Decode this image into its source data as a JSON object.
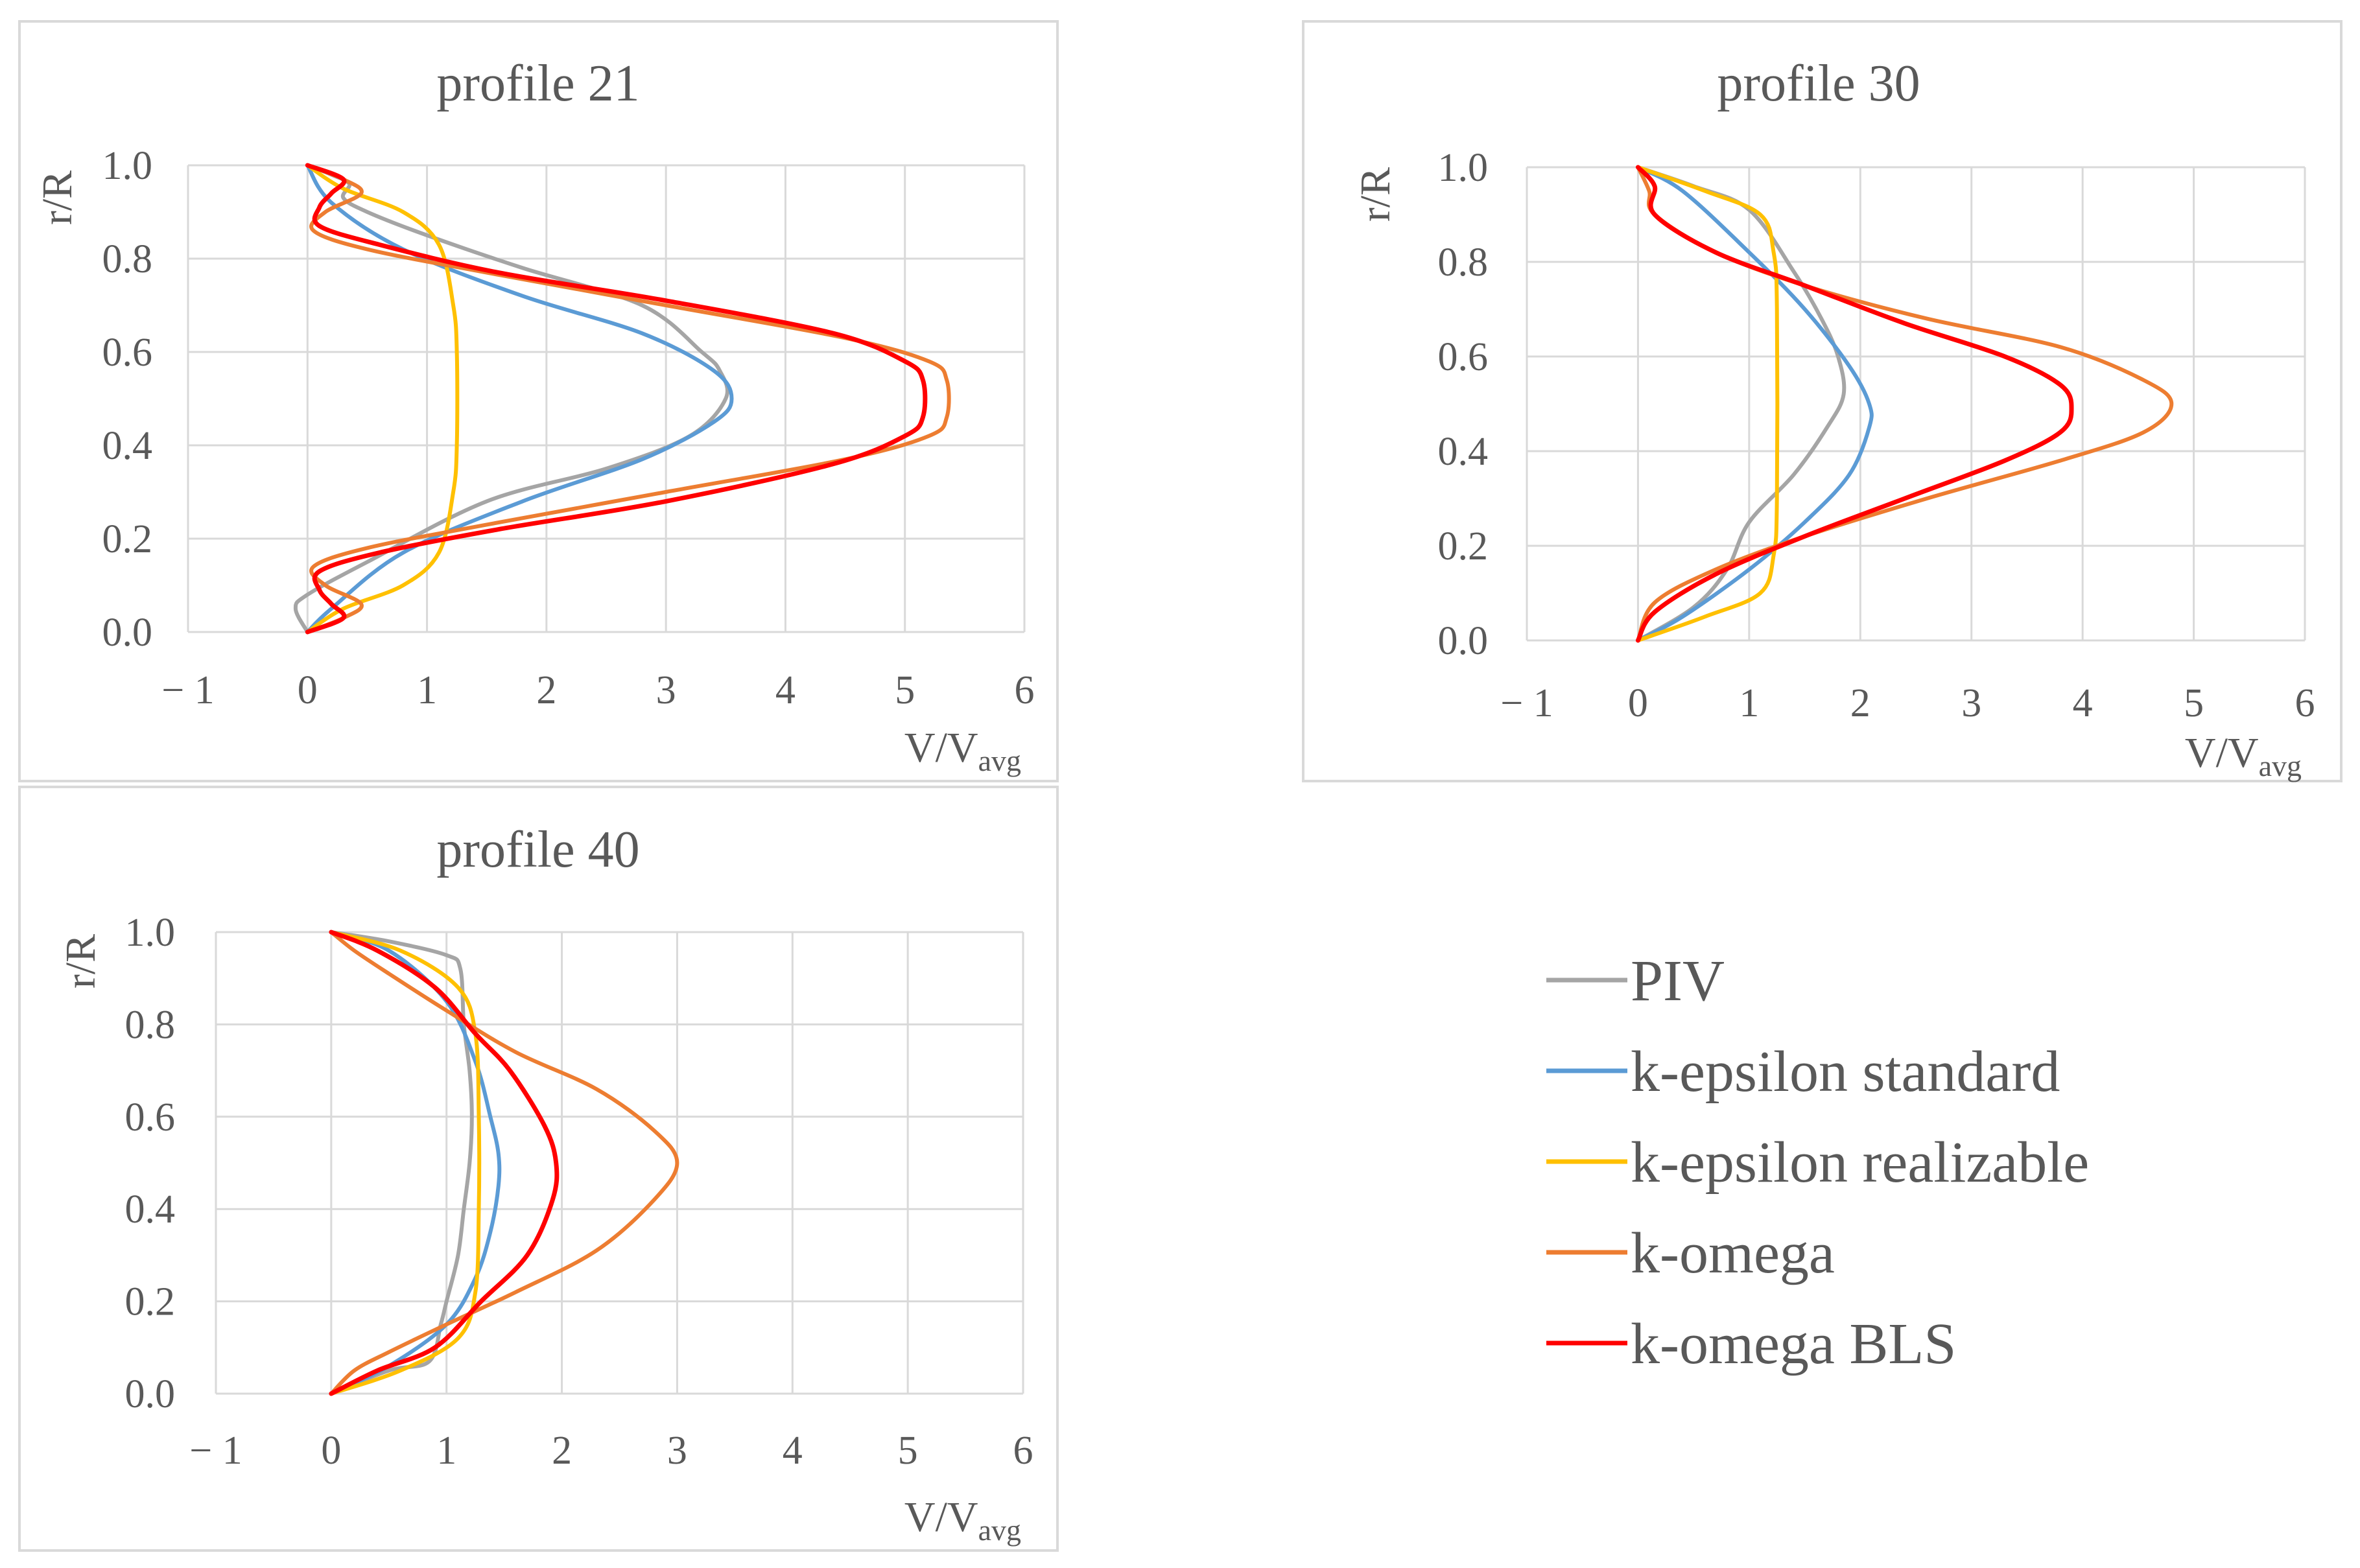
{
  "figure": {
    "legend": [
      {
        "label": "PIV",
        "color": "#a5a5a5"
      },
      {
        "label": "k-epsilon standard",
        "color": "#5b9bd5"
      },
      {
        "label": "k-epsilon realizable",
        "color": "#ffc000"
      },
      {
        "label": "k-omega",
        "color": "#ed7d31"
      },
      {
        "label": "k-omega BLS",
        "color": "#ff0000"
      }
    ]
  },
  "chart_data": [
    {
      "type": "line",
      "title": "profile 21",
      "xlabel": "V/V",
      "xlabel_sub": "avg",
      "ylabel": "r/R",
      "xlim": [
        -1,
        6
      ],
      "ylim": [
        0,
        1
      ],
      "xticks": [
        "− 1",
        "0",
        "1",
        "2",
        "3",
        "4",
        "5",
        "6"
      ],
      "yticks": [
        "0.0",
        "0.2",
        "0.4",
        "0.6",
        "0.8",
        "1.0"
      ],
      "grid": true,
      "series": [
        {
          "name": "PIV",
          "color": "#a5a5a5",
          "x": [
            0,
            -0.1,
            0,
            0.5,
            1.5,
            2.5,
            3.2,
            3.5,
            3.45,
            3.3,
            2.8,
            1.8,
            1.0,
            0.5,
            0.3,
            0.35,
            0.2,
            0
          ],
          "y": [
            0,
            0.05,
            0.08,
            0.15,
            0.28,
            0.35,
            0.42,
            0.5,
            0.56,
            0.6,
            0.7,
            0.78,
            0.85,
            0.9,
            0.93,
            0.96,
            0.98,
            1
          ]
        },
        {
          "name": "k-epsilon standard",
          "color": "#5b9bd5",
          "x": [
            0,
            0.2,
            0.8,
            1.8,
            2.8,
            3.4,
            3.55,
            3.4,
            2.8,
            1.8,
            0.8,
            0.2,
            0
          ],
          "y": [
            0,
            0.05,
            0.17,
            0.28,
            0.37,
            0.45,
            0.5,
            0.56,
            0.64,
            0.72,
            0.82,
            0.92,
            1
          ]
        },
        {
          "name": "k-epsilon realizable",
          "color": "#ffc000",
          "x": [
            0,
            0.3,
            0.8,
            1.1,
            1.22,
            1.25,
            1.25,
            1.22,
            1.1,
            0.8,
            0.3,
            0
          ],
          "y": [
            0,
            0.05,
            0.1,
            0.17,
            0.3,
            0.4,
            0.6,
            0.7,
            0.83,
            0.9,
            0.95,
            1
          ]
        },
        {
          "name": "k-omega",
          "color": "#ed7d31",
          "x": [
            0,
            0.3,
            0.45,
            0.15,
            0.05,
            0.5,
            1.5,
            3.0,
            4.5,
            5.2,
            5.35,
            5.35,
            5.2,
            4.5,
            3.0,
            1.5,
            0.5,
            0.05,
            0.15,
            0.45,
            0.3,
            0
          ],
          "y": [
            0,
            0.03,
            0.06,
            0.1,
            0.14,
            0.18,
            0.23,
            0.3,
            0.37,
            0.42,
            0.46,
            0.54,
            0.58,
            0.63,
            0.7,
            0.77,
            0.82,
            0.86,
            0.9,
            0.94,
            0.97,
            1
          ]
        },
        {
          "name": "k-omega BLS",
          "color": "#ff0000",
          "x": [
            0,
            0.3,
            0.2,
            0.1,
            0.1,
            0.6,
            1.6,
            3.0,
            4.4,
            5.0,
            5.15,
            5.15,
            5.0,
            4.4,
            3.0,
            1.6,
            0.6,
            0.1,
            0.1,
            0.2,
            0.3,
            0
          ],
          "y": [
            0,
            0.03,
            0.06,
            0.09,
            0.13,
            0.17,
            0.22,
            0.28,
            0.36,
            0.42,
            0.46,
            0.54,
            0.58,
            0.64,
            0.71,
            0.77,
            0.83,
            0.87,
            0.91,
            0.94,
            0.97,
            1
          ]
        }
      ]
    },
    {
      "type": "line",
      "title": "profile 30",
      "xlabel": "V/V",
      "xlabel_sub": "avg",
      "ylabel": "r/R",
      "xlim": [
        -1,
        6
      ],
      "ylim": [
        0,
        1
      ],
      "xticks": [
        "− 1",
        "0",
        "1",
        "2",
        "3",
        "4",
        "5",
        "6"
      ],
      "yticks": [
        "0.0",
        "0.2",
        "0.4",
        "0.6",
        "0.8",
        "1.0"
      ],
      "grid": true,
      "series": [
        {
          "name": "PIV",
          "color": "#a5a5a5",
          "x": [
            0,
            0.5,
            0.8,
            1.0,
            1.4,
            1.7,
            1.85,
            1.8,
            1.65,
            1.4,
            1.0,
            0.5,
            0
          ],
          "y": [
            0,
            0.07,
            0.15,
            0.25,
            0.35,
            0.45,
            0.52,
            0.6,
            0.68,
            0.78,
            0.91,
            0.96,
            1
          ]
        },
        {
          "name": "k-epsilon standard",
          "color": "#5b9bd5",
          "x": [
            0,
            0.4,
            1.0,
            1.5,
            1.9,
            2.08,
            2.08,
            1.9,
            1.5,
            1.0,
            0.4,
            0
          ],
          "y": [
            0,
            0.05,
            0.15,
            0.25,
            0.35,
            0.45,
            0.5,
            0.58,
            0.7,
            0.82,
            0.95,
            1
          ]
        },
        {
          "name": "k-epsilon realizable",
          "color": "#ffc000",
          "x": [
            0,
            0.6,
            1.1,
            1.22,
            1.25,
            1.25,
            1.22,
            1.1,
            0.6,
            0
          ],
          "y": [
            0,
            0.05,
            0.1,
            0.18,
            0.3,
            0.7,
            0.82,
            0.9,
            0.95,
            1
          ]
        },
        {
          "name": "k-omega",
          "color": "#ed7d31",
          "x": [
            0,
            0.15,
            0.7,
            1.5,
            2.6,
            3.8,
            4.55,
            4.8,
            4.55,
            3.8,
            2.6,
            1.5,
            0.7,
            0.15,
            0.1,
            0
          ],
          "y": [
            0,
            0.08,
            0.15,
            0.22,
            0.3,
            0.38,
            0.44,
            0.5,
            0.55,
            0.62,
            0.68,
            0.75,
            0.82,
            0.9,
            0.95,
            1
          ]
        },
        {
          "name": "k-omega BLS",
          "color": "#ff0000",
          "x": [
            0,
            0.15,
            0.7,
            1.5,
            2.4,
            3.3,
            3.8,
            3.9,
            3.8,
            3.3,
            2.4,
            1.5,
            0.7,
            0.15,
            0.15,
            0
          ],
          "y": [
            0,
            0.06,
            0.14,
            0.22,
            0.3,
            0.38,
            0.44,
            0.49,
            0.54,
            0.6,
            0.67,
            0.75,
            0.82,
            0.9,
            0.96,
            1
          ]
        }
      ]
    },
    {
      "type": "line",
      "title": "profile 40",
      "xlabel": "V/V",
      "xlabel_sub": "avg",
      "ylabel": "r/R",
      "xlim": [
        -1,
        6
      ],
      "ylim": [
        0,
        1
      ],
      "xticks": [
        "− 1",
        "0",
        "1",
        "2",
        "3",
        "4",
        "5",
        "6"
      ],
      "yticks": [
        "0.0",
        "0.2",
        "0.4",
        "0.6",
        "0.8",
        "1.0"
      ],
      "grid": true,
      "series": [
        {
          "name": "PIV",
          "color": "#a5a5a5",
          "x": [
            0,
            0.5,
            0.85,
            0.95,
            1.0,
            1.1,
            1.15,
            1.2,
            1.22,
            1.2,
            1.15,
            1.12,
            1.0,
            0.5,
            0
          ],
          "y": [
            0,
            0.05,
            0.07,
            0.15,
            0.2,
            0.3,
            0.4,
            0.5,
            0.6,
            0.7,
            0.8,
            0.92,
            0.95,
            0.98,
            1
          ]
        },
        {
          "name": "k-epsilon standard",
          "color": "#5b9bd5",
          "x": [
            0,
            0.5,
            1.0,
            1.25,
            1.38,
            1.45,
            1.45,
            1.38,
            1.25,
            1.0,
            0.5,
            0
          ],
          "y": [
            0,
            0.06,
            0.15,
            0.25,
            0.35,
            0.45,
            0.52,
            0.6,
            0.72,
            0.85,
            0.96,
            1
          ]
        },
        {
          "name": "k-epsilon realizable",
          "color": "#ffc000",
          "x": [
            0,
            0.6,
            1.1,
            1.25,
            1.28,
            1.28,
            1.25,
            1.1,
            0.6,
            0
          ],
          "y": [
            0,
            0.05,
            0.12,
            0.22,
            0.4,
            0.6,
            0.78,
            0.88,
            0.96,
            1
          ]
        },
        {
          "name": "k-omega",
          "color": "#ed7d31",
          "x": [
            0,
            0.2,
            0.5,
            1.0,
            1.6,
            2.3,
            2.8,
            3.0,
            2.8,
            2.3,
            1.6,
            1.0,
            0.5,
            0.2,
            0
          ],
          "y": [
            0,
            0.05,
            0.09,
            0.15,
            0.22,
            0.31,
            0.42,
            0.5,
            0.57,
            0.66,
            0.74,
            0.83,
            0.91,
            0.96,
            1
          ]
        },
        {
          "name": "k-omega BLS",
          "color": "#ff0000",
          "x": [
            0,
            0.4,
            0.9,
            1.3,
            1.7,
            1.92,
            1.95,
            1.85,
            1.55,
            1.25,
            0.9,
            0.4,
            0
          ],
          "y": [
            0,
            0.05,
            0.1,
            0.2,
            0.3,
            0.42,
            0.5,
            0.58,
            0.7,
            0.78,
            0.88,
            0.96,
            1
          ]
        }
      ]
    }
  ]
}
